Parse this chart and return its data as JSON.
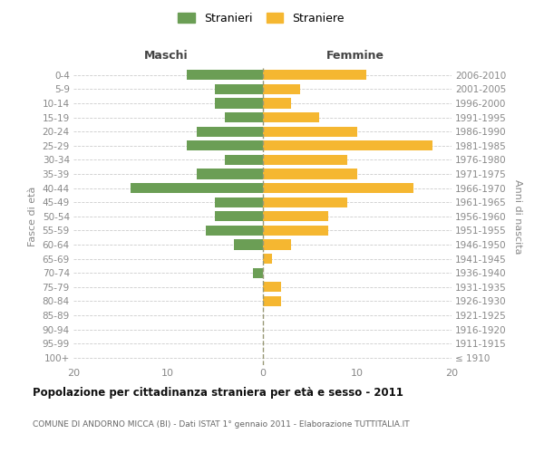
{
  "age_groups": [
    "100+",
    "95-99",
    "90-94",
    "85-89",
    "80-84",
    "75-79",
    "70-74",
    "65-69",
    "60-64",
    "55-59",
    "50-54",
    "45-49",
    "40-44",
    "35-39",
    "30-34",
    "25-29",
    "20-24",
    "15-19",
    "10-14",
    "5-9",
    "0-4"
  ],
  "birth_years": [
    "≤ 1910",
    "1911-1915",
    "1916-1920",
    "1921-1925",
    "1926-1930",
    "1931-1935",
    "1936-1940",
    "1941-1945",
    "1946-1950",
    "1951-1955",
    "1956-1960",
    "1961-1965",
    "1966-1970",
    "1971-1975",
    "1976-1980",
    "1981-1985",
    "1986-1990",
    "1991-1995",
    "1996-2000",
    "2001-2005",
    "2006-2010"
  ],
  "maschi": [
    0,
    0,
    0,
    0,
    0,
    0,
    1,
    0,
    3,
    6,
    5,
    5,
    14,
    7,
    4,
    8,
    7,
    4,
    5,
    5,
    8
  ],
  "femmine": [
    0,
    0,
    0,
    0,
    2,
    2,
    0,
    1,
    3,
    7,
    7,
    9,
    16,
    10,
    9,
    18,
    10,
    6,
    3,
    4,
    11
  ],
  "color_maschi": "#6b9e55",
  "color_femmine": "#f5b731",
  "title": "Popolazione per cittadinanza straniera per età e sesso - 2011",
  "subtitle": "COMUNE DI ANDORNO MICCA (BI) - Dati ISTAT 1° gennaio 2011 - Elaborazione TUTTITALIA.IT",
  "label_maschi_header": "Maschi",
  "label_femmine_header": "Femmine",
  "ylabel_left": "Fasce di età",
  "ylabel_right": "Anni di nascita",
  "legend_maschi": "Stranieri",
  "legend_femmine": "Straniere",
  "xlim": 20,
  "background_color": "#ffffff",
  "grid_color": "#cccccc",
  "zero_line_color": "#999977",
  "tick_color": "#888888",
  "label_color": "#444444",
  "title_color": "#111111",
  "subtitle_color": "#666666"
}
